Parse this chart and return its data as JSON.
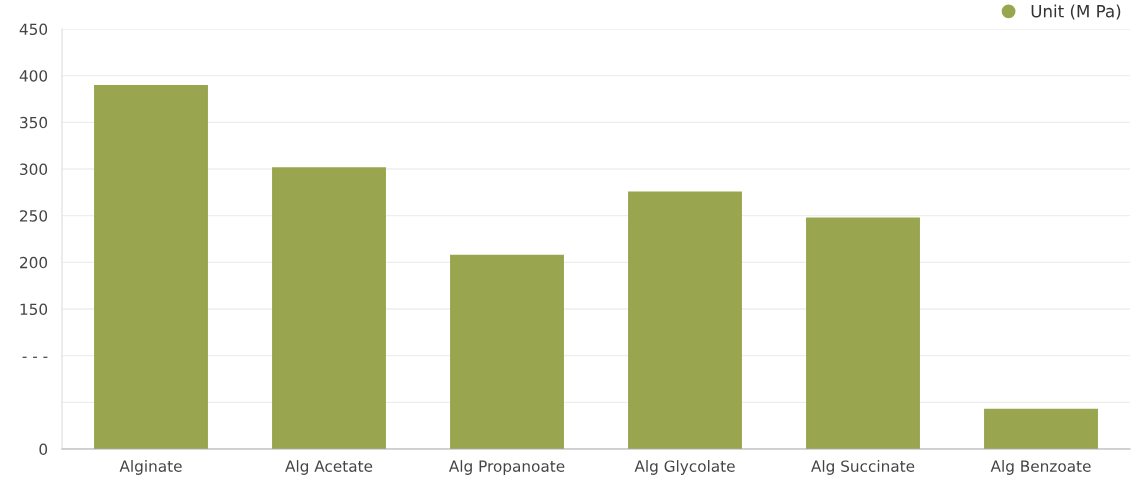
{
  "chart_data": {
    "type": "bar",
    "categories": [
      "Alginate",
      "Alg Acetate",
      "Alg Propanoate",
      "Alg Glycolate",
      "Alg Succinate",
      "Alg Benzoate"
    ],
    "series": [
      {
        "name": "Unit (M Pa)",
        "color": "#9aa64f",
        "values": [
          390,
          302,
          208,
          276,
          248,
          43
        ]
      }
    ],
    "ylim": [
      0,
      450
    ],
    "yticks": [
      0,
      {
        "value": 50,
        "label": null
      },
      {
        "value": 100,
        "label": "- - -"
      },
      150,
      200,
      250,
      300,
      350,
      400,
      450
    ],
    "grid": "y",
    "legend": "top right"
  }
}
